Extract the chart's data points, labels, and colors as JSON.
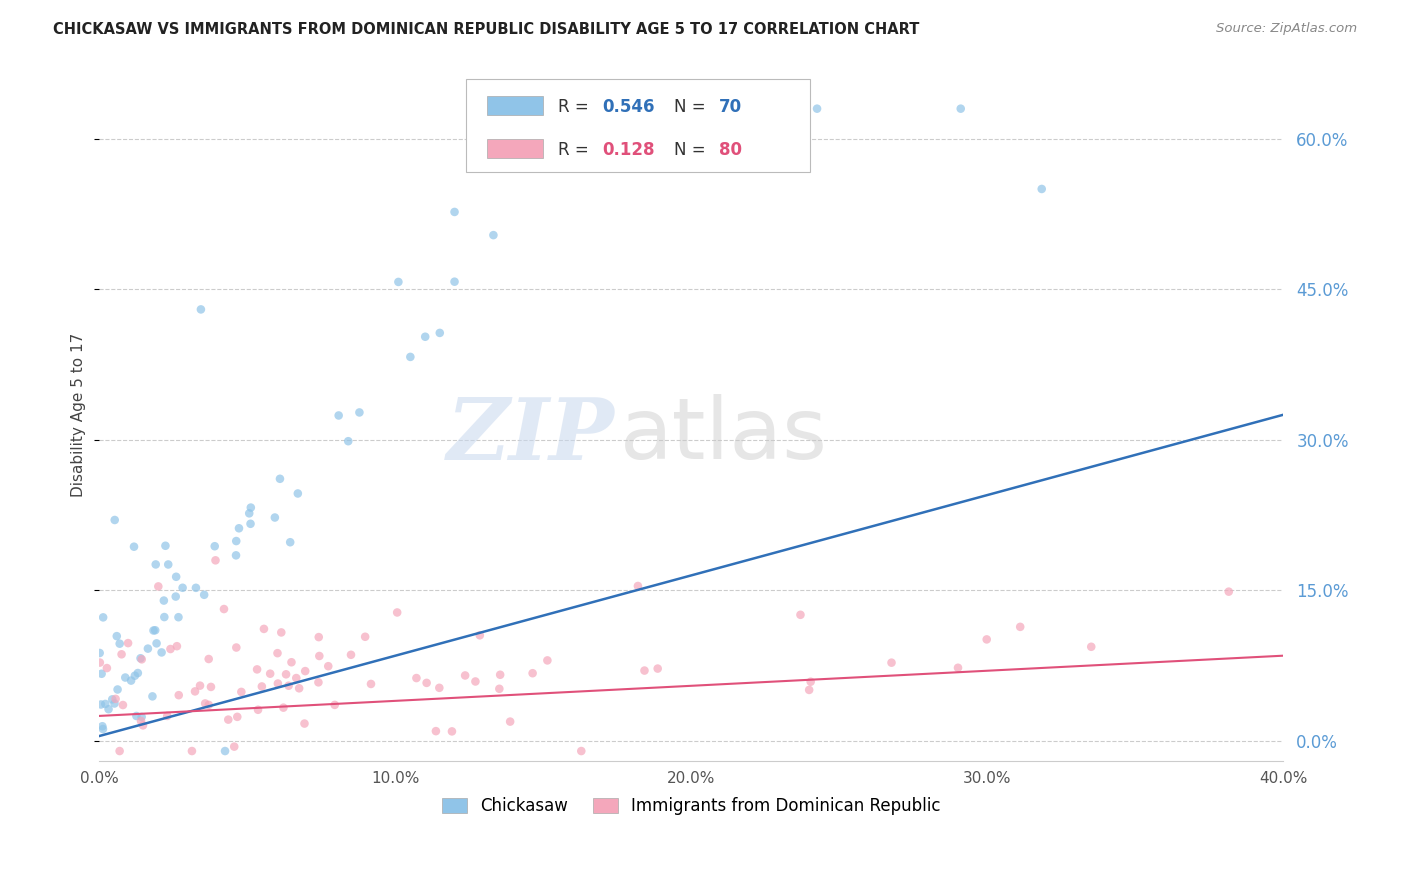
{
  "title": "CHICKASAW VS IMMIGRANTS FROM DOMINICAN REPUBLIC DISABILITY AGE 5 TO 17 CORRELATION CHART",
  "source": "Source: ZipAtlas.com",
  "ylabel": "Disability Age 5 to 17",
  "legend_label1": "Chickasaw",
  "legend_label2": "Immigrants from Dominican Republic",
  "r1": 0.546,
  "n1": 70,
  "r2": 0.128,
  "n2": 80,
  "color1": "#90c4e8",
  "color2": "#f4a7bb",
  "line_color1": "#3070b8",
  "line_color2": "#e0507a",
  "xmin": 0.0,
  "xmax": 0.4,
  "ymin": -0.02,
  "ymax": 0.67,
  "yticks": [
    0.0,
    0.15,
    0.3,
    0.45,
    0.6
  ],
  "xticks": [
    0.0,
    0.1,
    0.2,
    0.3,
    0.4
  ],
  "watermark_zip": "ZIP",
  "watermark_atlas": "atlas",
  "background": "#ffffff",
  "grid_color": "#cccccc",
  "scatter_alpha": 0.7,
  "scatter_size": 38,
  "blue_line_start_y": 0.005,
  "blue_line_end_y": 0.325,
  "pink_line_start_y": 0.025,
  "pink_line_end_y": 0.085
}
